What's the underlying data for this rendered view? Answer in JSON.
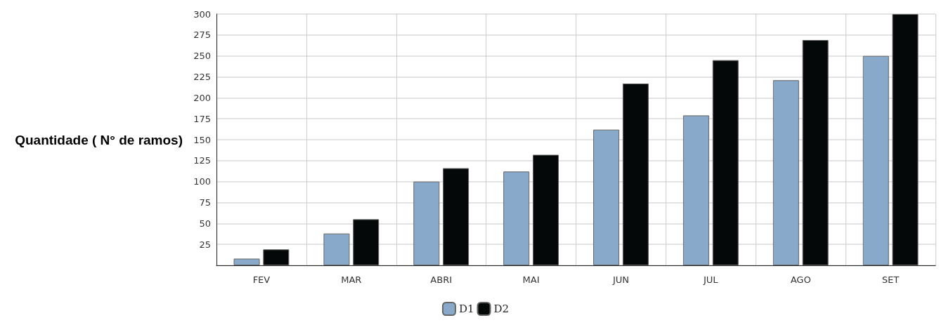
{
  "chart_data": {
    "type": "bar",
    "ylabel": "Quantidade ( N° de ramos)",
    "categories": [
      "FEV",
      "MAR",
      "ABRI",
      "MAI",
      "JUN",
      "JUL",
      "AGO",
      "SET"
    ],
    "series": [
      {
        "name": "D1",
        "color": "#88a9c9",
        "values": [
          8,
          38,
          100,
          112,
          162,
          179,
          221,
          250
        ]
      },
      {
        "name": "D2",
        "color": "#050808",
        "values": [
          19,
          55,
          116,
          132,
          217,
          245,
          269,
          300
        ]
      }
    ],
    "ylim": [
      0,
      300
    ],
    "yticks": [
      {
        "value": 0,
        "label": null
      },
      25,
      50,
      75,
      100,
      125,
      150,
      175,
      200,
      225,
      250,
      275,
      300
    ],
    "grid": true,
    "legend": "bottom"
  }
}
